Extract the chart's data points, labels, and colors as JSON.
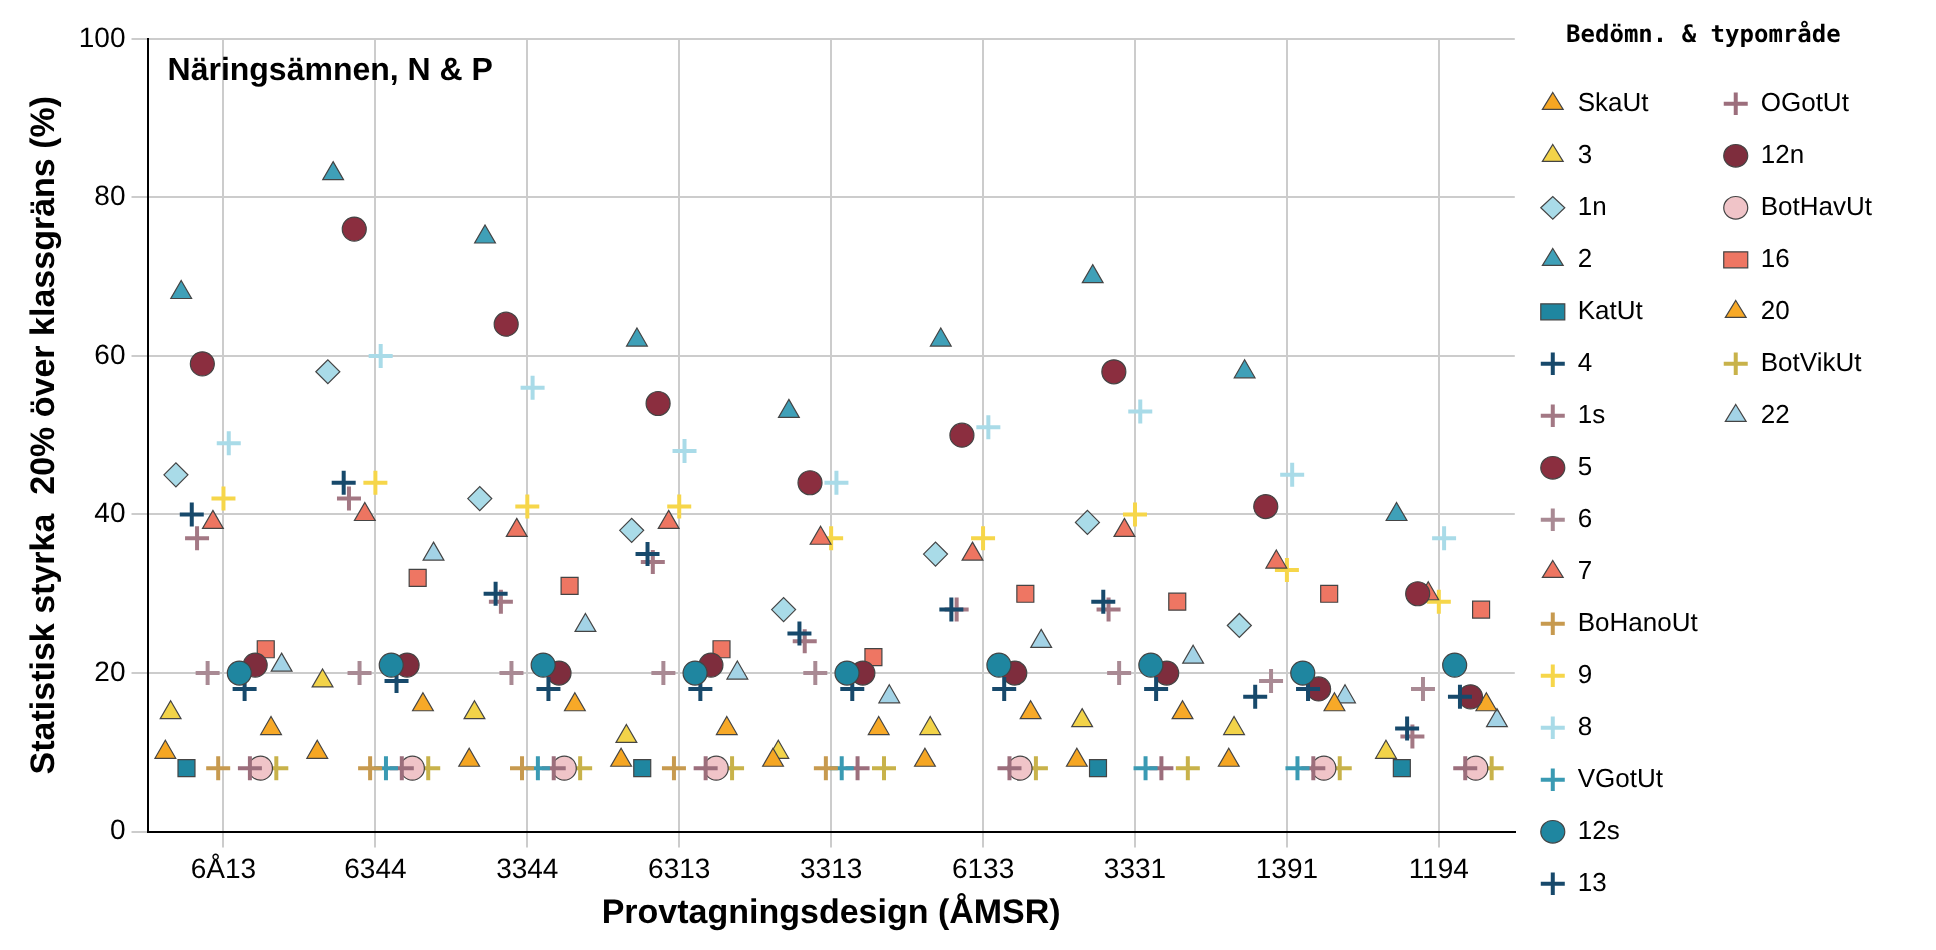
{
  "chart_data": {
    "type": "scatter",
    "title": "Näringsämnen, N & P",
    "xlabel": "Provtagningsdesign (ÅMSR)",
    "ylabel": "Statistisk styrka  20% över klassgräns (%)",
    "legend_title": "Bedömn. & typområde",
    "legend": "right",
    "grid": true,
    "ylim": [
      0,
      100
    ],
    "yticks": [
      0,
      20,
      40,
      60,
      80,
      100
    ],
    "categories": [
      "6Å13",
      "6344",
      "3344",
      "6313",
      "3313",
      "6133",
      "3331",
      "1391",
      "1194"
    ],
    "series": [
      {
        "name": "SkaUt",
        "color": "#f5a623",
        "marker": "triangle",
        "values": [
          10,
          10,
          9,
          9,
          9,
          9,
          9,
          9,
          null
        ]
      },
      {
        "name": "3",
        "color": "#f2d349",
        "marker": "triangle",
        "values": [
          15,
          19,
          15,
          12,
          10,
          13,
          14,
          13,
          10
        ]
      },
      {
        "name": "1n",
        "color": "#a9dbe8",
        "marker": "diamond",
        "values": [
          45,
          58,
          42,
          38,
          28,
          35,
          39,
          26,
          null
        ]
      },
      {
        "name": "2",
        "color": "#3fa0b8",
        "marker": "triangle",
        "values": [
          68,
          83,
          75,
          62,
          53,
          62,
          70,
          58,
          40
        ]
      },
      {
        "name": "KatUt",
        "color": "#1f86a0",
        "marker": "square",
        "values": [
          8,
          null,
          null,
          8,
          null,
          null,
          8,
          null,
          8
        ]
      },
      {
        "name": "4",
        "color": "#17496b",
        "marker": "cross",
        "values": [
          40,
          44,
          30,
          35,
          25,
          28,
          29,
          17,
          13
        ]
      },
      {
        "name": "1s",
        "color": "#a37884",
        "marker": "cross",
        "values": [
          37,
          42,
          29,
          34,
          24,
          28,
          28,
          null,
          12
        ]
      },
      {
        "name": "5",
        "color": "#8b2e3f",
        "marker": "circle",
        "values": [
          59,
          76,
          64,
          54,
          44,
          50,
          58,
          41,
          30
        ]
      },
      {
        "name": "6",
        "color": "#a98a94",
        "marker": "cross",
        "values": [
          20,
          20,
          20,
          20,
          20,
          null,
          20,
          19,
          18
        ]
      },
      {
        "name": "7",
        "color": "#ed7561",
        "marker": "triangle",
        "values": [
          39,
          40,
          38,
          39,
          37,
          35,
          38,
          34,
          30
        ]
      },
      {
        "name": "BoHanoUt",
        "color": "#c79a4f",
        "marker": "cross",
        "values": [
          8,
          8,
          8,
          8,
          8,
          null,
          null,
          null,
          null
        ]
      },
      {
        "name": "9",
        "color": "#f6d64a",
        "marker": "cross",
        "values": [
          42,
          44,
          41,
          41,
          37,
          37,
          40,
          33,
          29
        ]
      },
      {
        "name": "8",
        "color": "#a9dbe8",
        "marker": "cross",
        "values": [
          49,
          60,
          56,
          48,
          44,
          51,
          53,
          45,
          37
        ]
      },
      {
        "name": "VGotUt",
        "color": "#3a9ab3",
        "marker": "cross",
        "values": [
          null,
          8,
          8,
          null,
          8,
          null,
          8,
          8,
          null
        ]
      },
      {
        "name": "12s",
        "color": "#1f86a0",
        "marker": "circle",
        "values": [
          20,
          21,
          21,
          20,
          20,
          21,
          21,
          20,
          21
        ]
      },
      {
        "name": "13",
        "color": "#17496b",
        "marker": "cross",
        "values": [
          18,
          19,
          18,
          18,
          18,
          18,
          18,
          18,
          17
        ]
      },
      {
        "name": "OGotUt",
        "color": "#9c6e7c",
        "marker": "cross",
        "values": [
          8,
          8,
          8,
          8,
          8,
          8,
          8,
          8,
          8
        ]
      },
      {
        "name": "12n",
        "color": "#7e2d3d",
        "marker": "circle",
        "values": [
          21,
          21,
          20,
          21,
          20,
          20,
          20,
          18,
          17
        ]
      },
      {
        "name": "BotHavUt",
        "color": "#f0c4c8",
        "marker": "circle",
        "values": [
          8,
          8,
          8,
          8,
          null,
          8,
          null,
          8,
          8
        ]
      },
      {
        "name": "16",
        "color": "#ee7663",
        "marker": "square",
        "values": [
          23,
          32,
          31,
          23,
          22,
          30,
          29,
          30,
          28
        ]
      },
      {
        "name": "20",
        "color": "#f7a928",
        "marker": "triangle",
        "values": [
          13,
          16,
          16,
          13,
          13,
          15,
          15,
          16,
          16
        ]
      },
      {
        "name": "BotVikUt",
        "color": "#c8b24a",
        "marker": "cross",
        "values": [
          8,
          8,
          8,
          8,
          8,
          8,
          8,
          8,
          8
        ]
      },
      {
        "name": "22",
        "color": "#a3d3e6",
        "marker": "triangle",
        "values": [
          21,
          35,
          26,
          20,
          17,
          24,
          22,
          17,
          14
        ]
      }
    ]
  }
}
